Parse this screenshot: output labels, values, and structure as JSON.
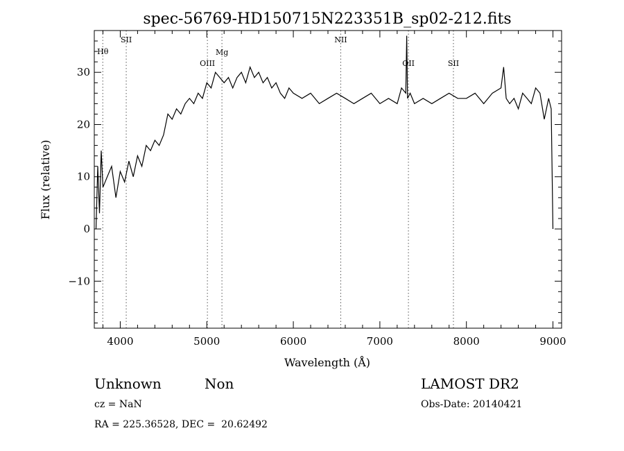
{
  "chart_data": {
    "type": "line",
    "title": "spec-56769-HD150715N223351B_sp02-212.fits",
    "xlabel": "Wavelength (Å)",
    "ylabel": "Flux (relative)",
    "xlim": [
      3700,
      9100
    ],
    "ylim": [
      -19,
      38
    ],
    "grid": false,
    "xticks": [
      4000,
      5000,
      6000,
      7000,
      8000,
      9000
    ],
    "xtick_labels": [
      "4000",
      "5000",
      "6000",
      "7000",
      "8000",
      "9000"
    ],
    "yticks": [
      -10,
      0,
      10,
      20,
      30
    ],
    "ytick_labels": [
      "−10",
      "0",
      "10",
      "20",
      "30"
    ],
    "series": [
      {
        "x": [
          3720,
          3740,
          3760,
          3780,
          3800,
          3850,
          3900,
          3950,
          4000,
          4050,
          4100,
          4150,
          4200,
          4250,
          4300,
          4350,
          4400,
          4450,
          4500,
          4550,
          4600,
          4650,
          4700,
          4750,
          4800,
          4850,
          4900,
          4950,
          5000,
          5050,
          5100,
          5150,
          5200,
          5250,
          5300,
          5350,
          5400,
          5450,
          5500,
          5550,
          5600,
          5650,
          5700,
          5750,
          5800,
          5850,
          5900,
          5950,
          6000,
          6100,
          6200,
          6300,
          6400,
          6500,
          6600,
          6700,
          6800,
          6900,
          7000,
          7100,
          7200,
          7250,
          7300,
          7310,
          7320,
          7350,
          7400,
          7500,
          7600,
          7700,
          7800,
          7900,
          8000,
          8100,
          8200,
          8300,
          8400,
          8430,
          8460,
          8500,
          8550,
          8600,
          8650,
          8700,
          8750,
          8800,
          8850,
          8900,
          8950,
          8980,
          9000
        ],
        "y": [
          0,
          12,
          3,
          15,
          8,
          10,
          12,
          6,
          11,
          9,
          13,
          10,
          14,
          12,
          16,
          15,
          17,
          16,
          18,
          22,
          21,
          23,
          22,
          24,
          25,
          24,
          26,
          25,
          28,
          27,
          30,
          29,
          28,
          29,
          27,
          29,
          30,
          28,
          31,
          29,
          30,
          28,
          29,
          27,
          28,
          26,
          25,
          27,
          26,
          25,
          26,
          24,
          25,
          26,
          25,
          24,
          25,
          26,
          24,
          25,
          24,
          27,
          26,
          37,
          25,
          26,
          24,
          25,
          24,
          25,
          26,
          25,
          25,
          26,
          24,
          26,
          27,
          31,
          25,
          24,
          25,
          23,
          26,
          25,
          24,
          27,
          26,
          21,
          25,
          23,
          0
        ]
      }
    ],
    "line_markers": [
      {
        "label": "Hθ",
        "x": 3798
      },
      {
        "label": "SII",
        "x": 4069
      },
      {
        "label": "OIII",
        "x": 5007
      },
      {
        "label": "Mg",
        "x": 5175
      },
      {
        "label": "NII",
        "x": 6548
      },
      {
        "label": "OII",
        "x": 7330
      },
      {
        "label": "SII",
        "x": 7850
      }
    ]
  },
  "info": {
    "class": "Unknown",
    "subclass": "Non",
    "survey": "LAMOST DR2",
    "cz": "cz = NaN",
    "obs_date": "Obs-Date: 20140421",
    "coords": "RA = 225.36528, DEC =  20.62492"
  }
}
